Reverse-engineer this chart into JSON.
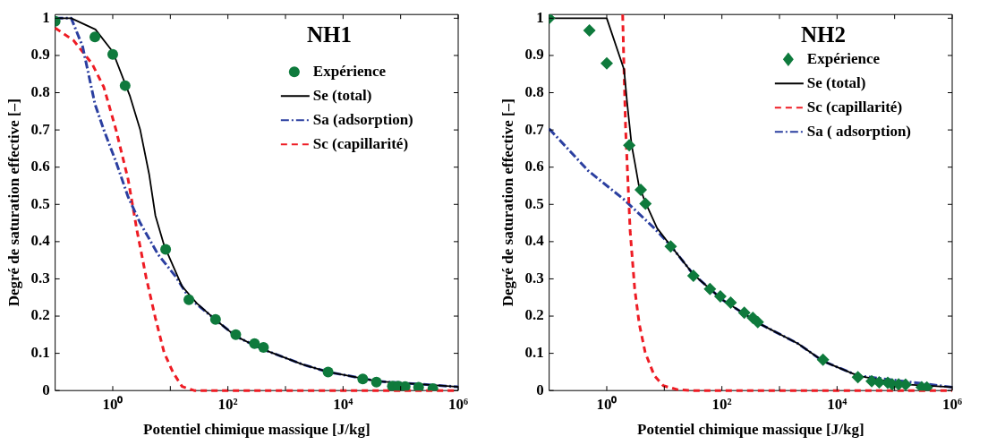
{
  "chart_data": [
    {
      "type": "line",
      "title": "NH1",
      "xlabel": "Potentiel chimique massique [J/kg]",
      "ylabel": "Degré de saturation effective [–]",
      "log": "x",
      "xlim": [
        0.1,
        1000000
      ],
      "ylim": [
        0,
        1.01
      ],
      "xticks": [
        {
          "value": 1,
          "label": "10⁰"
        },
        {
          "value": 10,
          "label": null
        },
        {
          "value": 100,
          "label": "10²"
        },
        {
          "value": 1000,
          "label": null
        },
        {
          "value": 10000,
          "label": "10⁴"
        },
        {
          "value": 100000,
          "label": null
        },
        {
          "value": 1000000,
          "label": "10⁶"
        }
      ],
      "yticks": [
        0,
        0.1,
        0.2,
        0.3,
        0.4,
        0.5,
        0.6,
        0.7,
        0.8,
        0.9,
        1
      ],
      "legend": "top right",
      "series": [
        {
          "name": "Expérience",
          "type": "scatter",
          "marker": "circle",
          "color": "#0e7a3c",
          "x": [
            0.1,
            0.49,
            1,
            1.64,
            8.3,
            21,
            61,
            137,
            290,
            415,
            5500,
            22000,
            38000,
            72000,
            91000,
            120000,
            205000,
            363000
          ],
          "values": [
            0.992,
            0.95,
            0.903,
            0.819,
            0.379,
            0.244,
            0.191,
            0.15,
            0.126,
            0.116,
            0.05,
            0.031,
            0.023,
            0.012,
            0.012,
            0.011,
            0.009,
            0.005
          ]
        },
        {
          "name": "Se (total)",
          "color": "#000000",
          "line_style": "solid",
          "x": [
            0.1,
            0.19,
            0.5,
            1,
            2,
            3,
            4.3,
            5.5,
            7.8,
            16,
            29,
            61,
            140,
            415,
            2000,
            5500,
            40000,
            1000000
          ],
          "values": [
            1,
            1,
            0.97,
            0.91,
            0.79,
            0.7,
            0.58,
            0.47,
            0.39,
            0.28,
            0.234,
            0.19,
            0.145,
            0.11,
            0.07,
            0.05,
            0.025,
            0.01
          ]
        },
        {
          "name": "Sa (adsorption)",
          "color": "#2b3fa0",
          "line_style": "dashdot",
          "x": [
            0.1,
            0.19,
            0.3,
            0.49,
            0.7,
            1.14,
            1.85,
            3,
            6.1,
            12.7,
            21,
            61,
            140,
            415,
            2000,
            5500,
            40000,
            1000000
          ],
          "values": [
            1,
            1,
            0.924,
            0.77,
            0.7,
            0.614,
            0.52,
            0.45,
            0.366,
            0.304,
            0.25,
            0.19,
            0.145,
            0.11,
            0.07,
            0.05,
            0.025,
            0.01
          ]
        },
        {
          "name": "Sc (capillarité)",
          "color": "#ee1c24",
          "line_style": "dashed",
          "x": [
            0.1,
            0.21,
            0.44,
            0.7,
            1.14,
            1.85,
            2.65,
            3.8,
            5.5,
            7.8,
            11.2,
            16,
            26,
            1000000
          ],
          "values": [
            0.974,
            0.94,
            0.877,
            0.815,
            0.7,
            0.567,
            0.428,
            0.304,
            0.195,
            0.102,
            0.048,
            0.011,
            0,
            0
          ]
        }
      ]
    },
    {
      "type": "line",
      "title": "NH2",
      "xlabel": "Potentiel chimique massique [J/kg]",
      "ylabel": "Degré de saturation effective [–]",
      "log": "x",
      "xlim": [
        0.1,
        1000000
      ],
      "ylim": [
        0,
        1.01
      ],
      "xticks": [
        {
          "value": 1,
          "label": "10⁰"
        },
        {
          "value": 10,
          "label": null
        },
        {
          "value": 100,
          "label": "10²"
        },
        {
          "value": 1000,
          "label": null
        },
        {
          "value": 10000,
          "label": "10⁴"
        },
        {
          "value": 100000,
          "label": null
        },
        {
          "value": 1000000,
          "label": "10⁶"
        }
      ],
      "yticks": [
        0,
        0.1,
        0.2,
        0.3,
        0.4,
        0.5,
        0.6,
        0.7,
        0.8,
        0.9,
        1
      ],
      "legend": "top right",
      "series": [
        {
          "name": "Expérience",
          "type": "scatter",
          "marker": "diamond",
          "color": "#0e7a3c",
          "x": [
            0.1,
            0.5,
            1,
            2.46,
            3.9,
            4.7,
            12.9,
            32,
            62,
            94,
            142,
            245,
            345,
            420,
            5700,
            23000,
            40000,
            54000,
            76000,
            91000,
            117000,
            155000,
            295000,
            363000
          ],
          "values": [
            1,
            0.967,
            0.879,
            0.659,
            0.539,
            0.502,
            0.387,
            0.308,
            0.273,
            0.253,
            0.236,
            0.209,
            0.195,
            0.184,
            0.083,
            0.036,
            0.025,
            0.022,
            0.021,
            0.017,
            0.017,
            0.016,
            0.009,
            0.008
          ]
        },
        {
          "name": "Se (total)",
          "color": "#000000",
          "line_style": "solid",
          "x": [
            0.1,
            1,
            2,
            2.25,
            2.7,
            3.06,
            3.6,
            4.7,
            7.5,
            12.9,
            32,
            106,
            445,
            2100,
            5700,
            23000,
            142000,
            1000000
          ],
          "values": [
            1,
            1,
            0.862,
            0.776,
            0.66,
            0.614,
            0.552,
            0.505,
            0.436,
            0.389,
            0.312,
            0.242,
            0.18,
            0.126,
            0.079,
            0.04,
            0.017,
            0.009
          ]
        },
        {
          "name": "Sc (capillarité)",
          "color": "#ee1c24",
          "line_style": "dashed",
          "x": [
            1.89,
            2,
            2.13,
            2.3,
            2.55,
            3.06,
            3.66,
            4.66,
            6.7,
            9.6,
            17.5,
            32,
            1000000
          ],
          "values": [
            1.01,
            0.854,
            0.7,
            0.583,
            0.428,
            0.273,
            0.18,
            0.102,
            0.04,
            0.013,
            0.002,
            0,
            0
          ]
        },
        {
          "name": "Sa ( adsorption)",
          "color": "#2b3fa0",
          "line_style": "dashdot",
          "x": [
            0.1,
            0.48,
            2,
            6.7,
            12.9,
            32,
            106,
            445,
            2100,
            5700,
            23000,
            1000000
          ],
          "values": [
            0.703,
            0.59,
            0.513,
            0.436,
            0.389,
            0.312,
            0.242,
            0.18,
            0.126,
            0.079,
            0.04,
            0.009
          ]
        }
      ]
    }
  ]
}
